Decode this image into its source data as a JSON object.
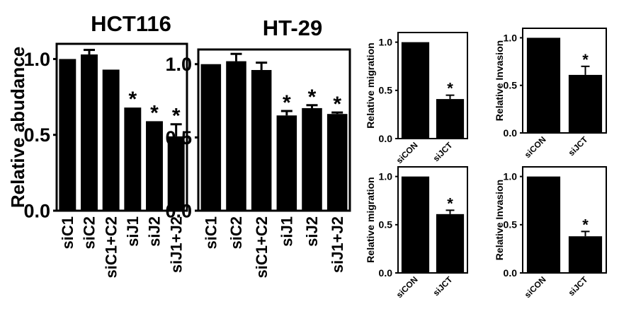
{
  "colors": {
    "bar": "#000000",
    "axis": "#000000",
    "background": "#ffffff"
  },
  "chart_data": [
    {
      "type": "bar",
      "title": "HCT116",
      "ylabel": "Relative abudance",
      "ylim": [
        0,
        1.1
      ],
      "yticks": [
        "0.0",
        "0.5",
        "1.0"
      ],
      "categories": [
        "siC1",
        "siC2",
        "siC1+C2",
        "siJ1",
        "siJ2",
        "siJ1+J2"
      ],
      "values": [
        1.0,
        1.03,
        0.93,
        0.68,
        0.59,
        0.49
      ],
      "errors": [
        0.0,
        0.03,
        0.0,
        0.0,
        0.0,
        0.08
      ],
      "annotations": [
        "",
        "",
        "",
        "*",
        "*",
        "*"
      ]
    },
    {
      "type": "bar",
      "title": "HT-29",
      "ylabel": "",
      "ylim": [
        0,
        1.1
      ],
      "yticks": [
        "0.0",
        "0.5",
        "1.0"
      ],
      "categories": [
        "siC1",
        "siC2",
        "siC1+C2",
        "siJ1",
        "siJ2",
        "siJ1+J2"
      ],
      "values": [
        1.0,
        1.02,
        0.96,
        0.65,
        0.7,
        0.66
      ],
      "errors": [
        0.0,
        0.05,
        0.05,
        0.03,
        0.02,
        0.01
      ],
      "annotations": [
        "",
        "",
        "",
        "*",
        "*",
        "*"
      ]
    },
    {
      "type": "bar",
      "title": "",
      "ylabel": "Relative migration",
      "ylim": [
        0,
        1.1
      ],
      "yticks": [
        "0.0",
        "0.5",
        "1.0"
      ],
      "categories": [
        "siCON",
        "siJCT"
      ],
      "values": [
        1.0,
        0.41
      ],
      "errors": [
        0.0,
        0.04
      ],
      "annotations": [
        "",
        "*"
      ]
    },
    {
      "type": "bar",
      "title": "",
      "ylabel": "Relative Invasion",
      "ylim": [
        0,
        1.1
      ],
      "yticks": [
        "0.0",
        "0.5",
        "1.0"
      ],
      "categories": [
        "siCON",
        "siJCT"
      ],
      "values": [
        1.0,
        0.61
      ],
      "errors": [
        0.0,
        0.09
      ],
      "annotations": [
        "",
        "*"
      ]
    },
    {
      "type": "bar",
      "title": "",
      "ylabel": "Relative migration",
      "ylim": [
        0,
        1.1
      ],
      "yticks": [
        "0.0",
        "0.5",
        "1.0"
      ],
      "categories": [
        "siCON",
        "siJCT"
      ],
      "values": [
        1.0,
        0.61
      ],
      "errors": [
        0.0,
        0.04
      ],
      "annotations": [
        "",
        "*"
      ]
    },
    {
      "type": "bar",
      "title": "",
      "ylabel": "Relative Invasion",
      "ylim": [
        0,
        1.1
      ],
      "yticks": [
        "0.0",
        "0.5",
        "1.0"
      ],
      "categories": [
        "siCON",
        "siJCT"
      ],
      "values": [
        1.0,
        0.38
      ],
      "errors": [
        0.0,
        0.05
      ],
      "annotations": [
        "",
        "*"
      ]
    }
  ]
}
